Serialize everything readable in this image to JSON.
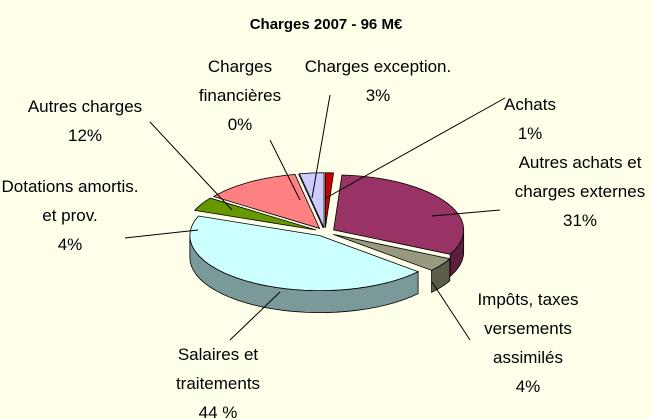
{
  "chart_data": {
    "type": "pie3d",
    "title": "Charges 2007 - 96 M€",
    "categories": [
      "Achats",
      "Autres achats et charges externes",
      "Impôts, taxes versements assimilés",
      "Salaires et traitements",
      "Dotations amortis. et prov.",
      "Autres charges",
      "Charges financières",
      "Charges exception."
    ],
    "values": [
      1,
      31,
      4,
      44,
      4,
      12,
      0,
      3
    ],
    "value_labels": [
      "1%",
      "31%",
      "4%",
      "44 %",
      "4%",
      "12%",
      "0%",
      "3%"
    ],
    "colors": [
      "#cc0000",
      "#993366",
      "#999980",
      "#ccffff",
      "#669900",
      "#ff8080",
      "#800000",
      "#ccccff"
    ]
  }
}
